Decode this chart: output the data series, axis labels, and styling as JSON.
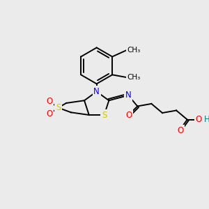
{
  "background_color": "#ebebeb",
  "atom_colors": {
    "S": "#cccc00",
    "N": "#0000ff",
    "O": "#ff0000",
    "H": "#008080",
    "C": "#000000"
  },
  "font_size_atoms": 8.5,
  "fig_size": [
    3.0,
    3.0
  ],
  "dpi": 100
}
